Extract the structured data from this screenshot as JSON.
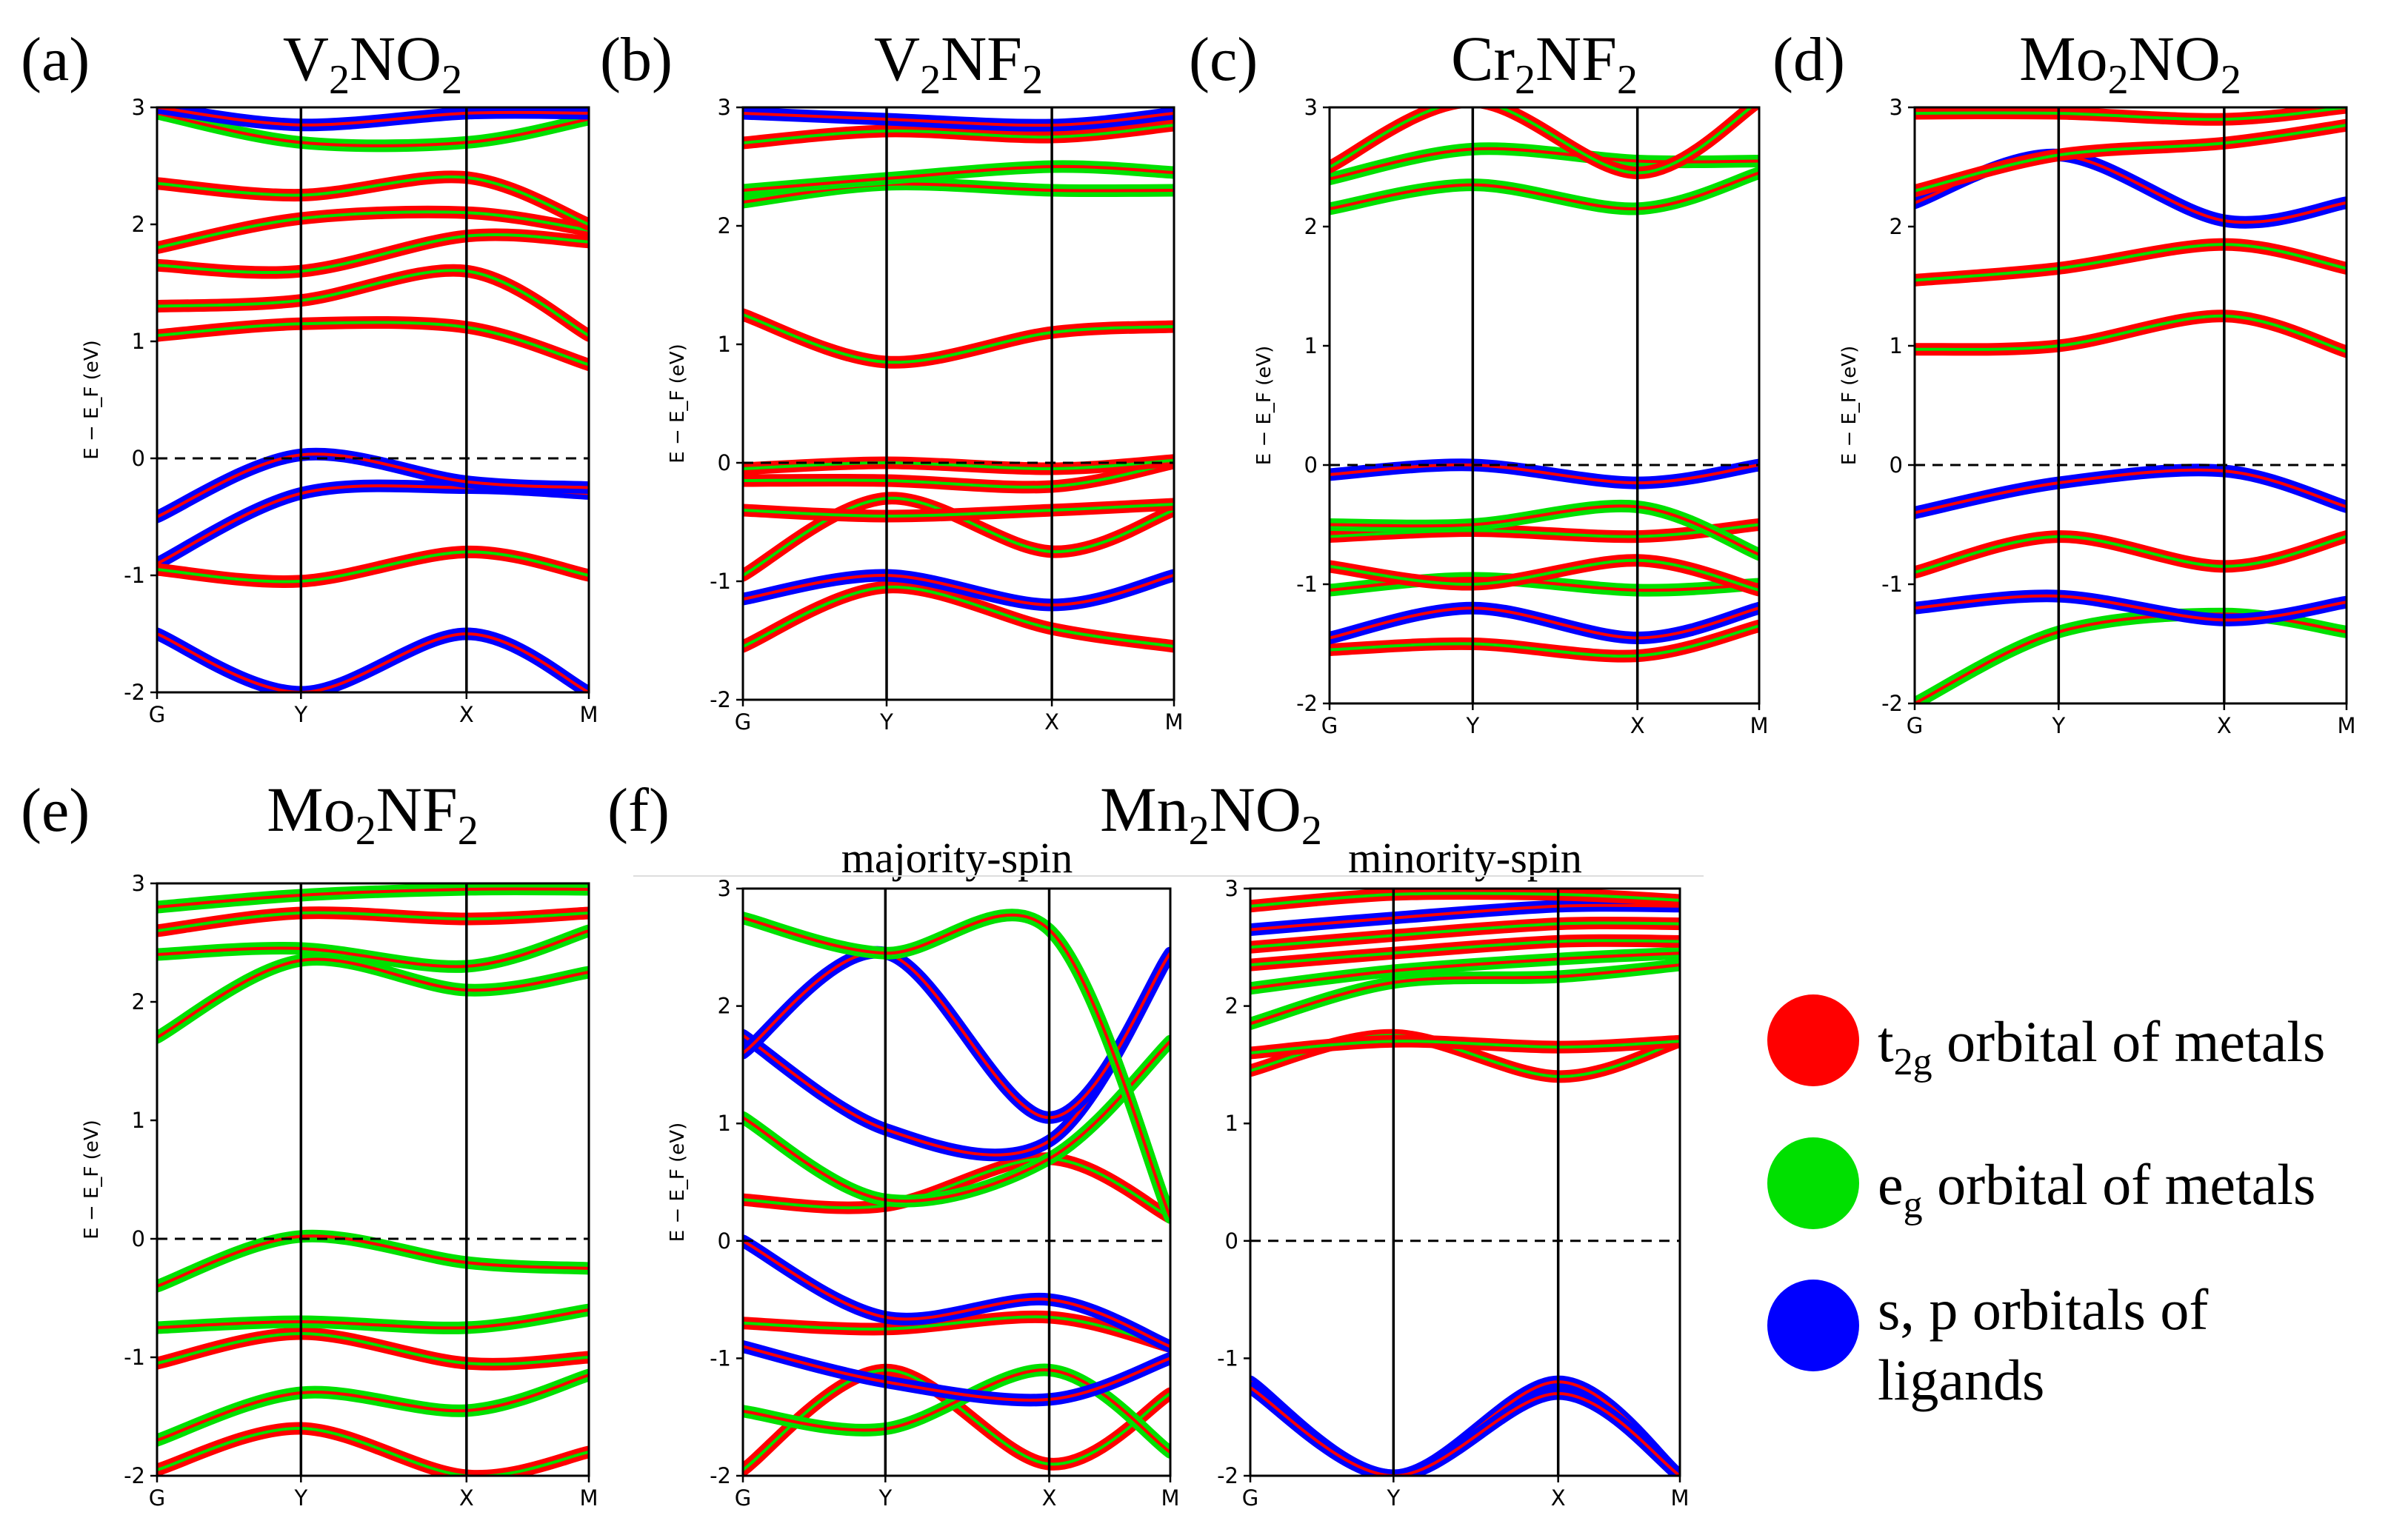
{
  "colors": {
    "t2g": "#ff0000",
    "eg": "#00e000",
    "sp": "#0000ff",
    "fermi": "#000000"
  },
  "legend": [
    {
      "key": "t2g",
      "main": "t",
      "sub": "2g",
      "rest": " orbital of metals"
    },
    {
      "key": "eg",
      "main": "e",
      "sub": "g",
      "rest": " orbital of metals"
    },
    {
      "key": "sp",
      "line1": "s, p orbitals of",
      "line2": "ligands"
    }
  ],
  "chart_data": [
    {
      "type": "line",
      "letter": "(a)",
      "title": {
        "parts": [
          "V",
          "2",
          "NO",
          "2"
        ]
      },
      "xlabel": "",
      "ylabel": "E − E_F (eV)",
      "x_ticks": [
        "G",
        "Y",
        "X",
        "M"
      ],
      "x_positions": [
        0,
        1,
        2.15,
        3
      ],
      "ylim": [
        -2,
        3
      ],
      "y_ticks": [
        3,
        2,
        1,
        0,
        -1,
        -2
      ],
      "fermi_level": 0,
      "series": [
        {
          "name": "band 1",
          "orbital": "sp",
          "values": [
            -0.9,
            -0.3,
            -0.25,
            -0.3
          ]
        },
        {
          "name": "band 2",
          "orbital": "t2g",
          "values": [
            -0.95,
            -1.05,
            -0.8,
            -1.0
          ]
        },
        {
          "name": "band 3",
          "orbital": "sp",
          "values": [
            -0.5,
            0.03,
            -0.2,
            -0.25
          ]
        },
        {
          "name": "band 4",
          "orbital": "t2g",
          "values": [
            1.05,
            1.15,
            1.12,
            0.8
          ]
        },
        {
          "name": "band 5",
          "orbital": "t2g",
          "values": [
            1.3,
            1.35,
            1.6,
            1.05
          ]
        },
        {
          "name": "band 6",
          "orbital": "t2g",
          "values": [
            1.65,
            1.6,
            1.9,
            1.85
          ]
        },
        {
          "name": "band 7",
          "orbital": "t2g",
          "values": [
            1.8,
            2.05,
            2.1,
            1.95
          ]
        },
        {
          "name": "band 8",
          "orbital": "t2g",
          "values": [
            2.35,
            2.25,
            2.4,
            2.0
          ]
        },
        {
          "name": "band 9",
          "orbital": "eg",
          "values": [
            2.95,
            2.7,
            2.7,
            2.9
          ]
        },
        {
          "name": "band 10",
          "orbital": "sp",
          "values": [
            3.0,
            2.85,
            2.95,
            2.95
          ]
        },
        {
          "name": "band 11",
          "orbital": "sp",
          "values": [
            -1.5,
            -2.0,
            -1.5,
            -2.0
          ]
        }
      ]
    },
    {
      "type": "line",
      "letter": "(b)",
      "title": {
        "parts": [
          "V",
          "2",
          "NF",
          "2"
        ]
      },
      "xlabel": "",
      "ylabel": "E − E_F (eV)",
      "x_ticks": [
        "G",
        "Y",
        "X",
        "M"
      ],
      "x_positions": [
        0,
        1,
        2.15,
        3
      ],
      "ylim": [
        -2,
        3
      ],
      "y_ticks": [
        3,
        2,
        1,
        0,
        -1,
        -2
      ],
      "fermi_level": 0,
      "series": [
        {
          "name": "band 1",
          "orbital": "t2g",
          "values": [
            -1.55,
            -1.05,
            -1.4,
            -1.55
          ]
        },
        {
          "name": "band 2",
          "orbital": "sp",
          "values": [
            -1.15,
            -0.95,
            -1.2,
            -0.95
          ]
        },
        {
          "name": "band 3",
          "orbital": "t2g",
          "values": [
            -0.95,
            -0.3,
            -0.75,
            -0.4
          ]
        },
        {
          "name": "band 4",
          "orbital": "t2g",
          "values": [
            -0.4,
            -0.45,
            -0.4,
            -0.35
          ]
        },
        {
          "name": "band 5",
          "orbital": "t2g",
          "values": [
            -0.15,
            -0.15,
            -0.2,
            0.0
          ]
        },
        {
          "name": "band 6",
          "orbital": "t2g",
          "values": [
            -0.05,
            0.0,
            -0.05,
            0.02
          ]
        },
        {
          "name": "band 7",
          "orbital": "t2g",
          "values": [
            1.25,
            0.85,
            1.1,
            1.15
          ]
        },
        {
          "name": "band 8",
          "orbital": "eg",
          "values": [
            2.2,
            2.35,
            2.3,
            2.3
          ]
        },
        {
          "name": "band 9",
          "orbital": "eg",
          "values": [
            2.3,
            2.4,
            2.5,
            2.45
          ]
        },
        {
          "name": "band 10",
          "orbital": "t2g",
          "values": [
            2.7,
            2.8,
            2.75,
            2.85
          ]
        },
        {
          "name": "band 11",
          "orbital": "sp",
          "values": [
            2.95,
            2.9,
            2.85,
            2.95
          ]
        }
      ]
    },
    {
      "type": "line",
      "letter": "(c)",
      "title": {
        "parts": [
          "Cr",
          "2",
          "NF",
          "2"
        ]
      },
      "xlabel": "",
      "ylabel": "E − E_F (eV)",
      "x_ticks": [
        "G",
        "Y",
        "X",
        "M"
      ],
      "x_positions": [
        0,
        1,
        2.15,
        3
      ],
      "ylim": [
        -2,
        3
      ],
      "y_ticks": [
        3,
        2,
        1,
        0,
        -1,
        -2
      ],
      "fermi_level": 0,
      "series": [
        {
          "name": "band 1",
          "orbital": "t2g",
          "values": [
            -1.55,
            -1.5,
            -1.6,
            -1.35
          ]
        },
        {
          "name": "band 2",
          "orbital": "sp",
          "values": [
            -1.45,
            -1.2,
            -1.45,
            -1.2
          ]
        },
        {
          "name": "band 3",
          "orbital": "eg",
          "values": [
            -1.05,
            -0.95,
            -1.05,
            -1.0
          ]
        },
        {
          "name": "band 4",
          "orbital": "t2g",
          "values": [
            -0.85,
            -1.0,
            -0.8,
            -1.05
          ]
        },
        {
          "name": "band 5",
          "orbital": "t2g",
          "values": [
            -0.6,
            -0.55,
            -0.6,
            -0.5
          ]
        },
        {
          "name": "band 6",
          "orbital": "eg",
          "values": [
            -0.5,
            -0.5,
            -0.35,
            -0.75
          ]
        },
        {
          "name": "band 7",
          "orbital": "sp",
          "values": [
            -0.08,
            0.0,
            -0.15,
            0.0
          ]
        },
        {
          "name": "band 8",
          "orbital": "eg",
          "values": [
            2.15,
            2.35,
            2.15,
            2.45
          ]
        },
        {
          "name": "band 9",
          "orbital": "eg",
          "values": [
            2.4,
            2.65,
            2.55,
            2.55
          ]
        },
        {
          "name": "band 10",
          "orbital": "t2g",
          "values": [
            2.5,
            3.05,
            2.45,
            3.05
          ]
        }
      ]
    },
    {
      "type": "line",
      "letter": "(d)",
      "title": {
        "parts": [
          "Mo",
          "2",
          "NO",
          "2"
        ]
      },
      "xlabel": "",
      "ylabel": "E − E_F (eV)",
      "x_ticks": [
        "G",
        "Y",
        "X",
        "M"
      ],
      "x_positions": [
        0,
        1,
        2.15,
        3
      ],
      "ylim": [
        -2,
        3
      ],
      "y_ticks": [
        3,
        2,
        1,
        0,
        -1,
        -2
      ],
      "fermi_level": 0,
      "series": [
        {
          "name": "band 1",
          "orbital": "eg",
          "values": [
            -2.0,
            -1.4,
            -1.25,
            -1.4
          ]
        },
        {
          "name": "band 2",
          "orbital": "sp",
          "values": [
            -1.2,
            -1.1,
            -1.3,
            -1.15
          ]
        },
        {
          "name": "band 3",
          "orbital": "t2g",
          "values": [
            -0.9,
            -0.6,
            -0.85,
            -0.6
          ]
        },
        {
          "name": "band 4",
          "orbital": "sp",
          "values": [
            -0.4,
            -0.15,
            -0.05,
            -0.35
          ]
        },
        {
          "name": "band 5",
          "orbital": "t2g",
          "values": [
            0.97,
            1.0,
            1.25,
            0.95
          ]
        },
        {
          "name": "band 6",
          "orbital": "t2g",
          "values": [
            1.55,
            1.65,
            1.85,
            1.65
          ]
        },
        {
          "name": "band 7",
          "orbital": "sp",
          "values": [
            2.2,
            2.6,
            2.05,
            2.2
          ]
        },
        {
          "name": "band 8",
          "orbital": "t2g",
          "values": [
            2.3,
            2.6,
            2.7,
            2.85
          ]
        },
        {
          "name": "band 9",
          "orbital": "t2g",
          "values": [
            2.95,
            2.95,
            2.9,
            3.0
          ]
        }
      ]
    },
    {
      "type": "line",
      "letter": "(e)",
      "title": {
        "parts": [
          "Mo",
          "2",
          "NF",
          "2"
        ]
      },
      "xlabel": "",
      "ylabel": "E − E_F (eV)",
      "x_ticks": [
        "G",
        "Y",
        "X",
        "M"
      ],
      "x_positions": [
        0,
        1,
        2.15,
        3
      ],
      "ylim": [
        -2,
        3
      ],
      "y_ticks": [
        3,
        2,
        1,
        0,
        -1,
        -2
      ],
      "fermi_level": 0,
      "series": [
        {
          "name": "band 1",
          "orbital": "t2g",
          "values": [
            -1.95,
            -1.6,
            -2.0,
            -1.8
          ]
        },
        {
          "name": "band 2",
          "orbital": "eg",
          "values": [
            -1.7,
            -1.3,
            -1.45,
            -1.15
          ]
        },
        {
          "name": "band 3",
          "orbital": "t2g",
          "values": [
            -1.05,
            -0.8,
            -1.05,
            -1.0
          ]
        },
        {
          "name": "band 4",
          "orbital": "eg",
          "values": [
            -0.75,
            -0.7,
            -0.75,
            -0.6
          ]
        },
        {
          "name": "band 5",
          "orbital": "eg",
          "values": [
            -0.4,
            0.02,
            -0.2,
            -0.25
          ]
        },
        {
          "name": "band 6",
          "orbital": "eg",
          "values": [
            1.7,
            2.35,
            2.1,
            2.25
          ]
        },
        {
          "name": "band 7",
          "orbital": "eg",
          "values": [
            2.4,
            2.45,
            2.3,
            2.6
          ]
        },
        {
          "name": "band 8",
          "orbital": "t2g",
          "values": [
            2.6,
            2.75,
            2.7,
            2.75
          ]
        },
        {
          "name": "band 9",
          "orbital": "eg",
          "values": [
            2.8,
            2.9,
            2.95,
            2.95
          ]
        }
      ]
    },
    {
      "type": "line",
      "letter": "(f)",
      "title": {
        "parts": [
          "Mn",
          "2",
          "NO",
          "2"
        ]
      },
      "subtitle": "majority-spin",
      "xlabel": "",
      "ylabel": "E − E_F (eV)",
      "x_ticks": [
        "G",
        "Y",
        "X",
        "M"
      ],
      "x_positions": [
        0,
        1,
        2.15,
        3
      ],
      "ylim": [
        -2,
        3
      ],
      "y_ticks": [
        3,
        2,
        1,
        0,
        -1,
        -2
      ],
      "fermi_level": 0,
      "series": [
        {
          "name": "band 1",
          "orbital": "t2g",
          "values": [
            -1.95,
            -1.1,
            -1.9,
            -1.3
          ]
        },
        {
          "name": "band 2",
          "orbital": "eg",
          "values": [
            -1.45,
            -1.6,
            -1.1,
            -1.8
          ]
        },
        {
          "name": "band 3",
          "orbital": "sp",
          "values": [
            -0.9,
            -1.2,
            -1.35,
            -1.0
          ]
        },
        {
          "name": "band 4",
          "orbital": "t2g",
          "values": [
            -0.7,
            -0.75,
            -0.65,
            -0.9
          ]
        },
        {
          "name": "band 5",
          "orbital": "sp",
          "values": [
            0.0,
            -0.65,
            -0.5,
            -0.9
          ]
        },
        {
          "name": "band 6",
          "orbital": "t2g",
          "values": [
            0.35,
            0.3,
            0.7,
            0.2
          ]
        },
        {
          "name": "band 7",
          "orbital": "eg",
          "values": [
            1.05,
            0.35,
            0.7,
            1.7
          ]
        },
        {
          "name": "band 8",
          "orbital": "sp",
          "values": [
            1.75,
            0.95,
            0.85,
            2.45
          ]
        },
        {
          "name": "band 9",
          "orbital": "sp",
          "values": [
            1.6,
            2.45,
            1.05,
            2.45
          ]
        },
        {
          "name": "band 10",
          "orbital": "eg",
          "values": [
            2.75,
            2.45,
            2.65,
            0.2
          ]
        }
      ]
    },
    {
      "type": "line",
      "letter": "",
      "subtitle": "minority-spin",
      "xlabel": "",
      "ylabel": "",
      "x_ticks": [
        "G",
        "Y",
        "X",
        "M"
      ],
      "x_positions": [
        0,
        1,
        2.15,
        3
      ],
      "ylim": [
        -2,
        3
      ],
      "y_ticks": [
        3,
        2,
        1,
        0,
        -1,
        -2
      ],
      "fermi_level": 0,
      "series": [
        {
          "name": "band 1",
          "orbital": "sp",
          "values": [
            -1.2,
            -2.0,
            -1.2,
            -2.0
          ]
        },
        {
          "name": "band 2",
          "orbital": "sp",
          "values": [
            -1.25,
            -2.0,
            -1.3,
            -2.0
          ]
        },
        {
          "name": "band 3",
          "orbital": "t2g",
          "values": [
            1.45,
            1.75,
            1.4,
            1.7
          ]
        },
        {
          "name": "band 4",
          "orbital": "t2g",
          "values": [
            1.6,
            1.7,
            1.65,
            1.7
          ]
        },
        {
          "name": "band 5",
          "orbital": "eg",
          "values": [
            1.85,
            2.2,
            2.25,
            2.35
          ]
        },
        {
          "name": "band 6",
          "orbital": "eg",
          "values": [
            2.15,
            2.3,
            2.4,
            2.45
          ]
        },
        {
          "name": "band 7",
          "orbital": "t2g",
          "values": [
            2.35,
            2.45,
            2.55,
            2.55
          ]
        },
        {
          "name": "band 8",
          "orbital": "t2g",
          "values": [
            2.5,
            2.6,
            2.7,
            2.7
          ]
        },
        {
          "name": "band 9",
          "orbital": "sp",
          "values": [
            2.65,
            2.75,
            2.85,
            2.85
          ]
        },
        {
          "name": "band 10",
          "orbital": "t2g",
          "values": [
            2.85,
            2.95,
            2.95,
            2.9
          ]
        }
      ]
    }
  ]
}
